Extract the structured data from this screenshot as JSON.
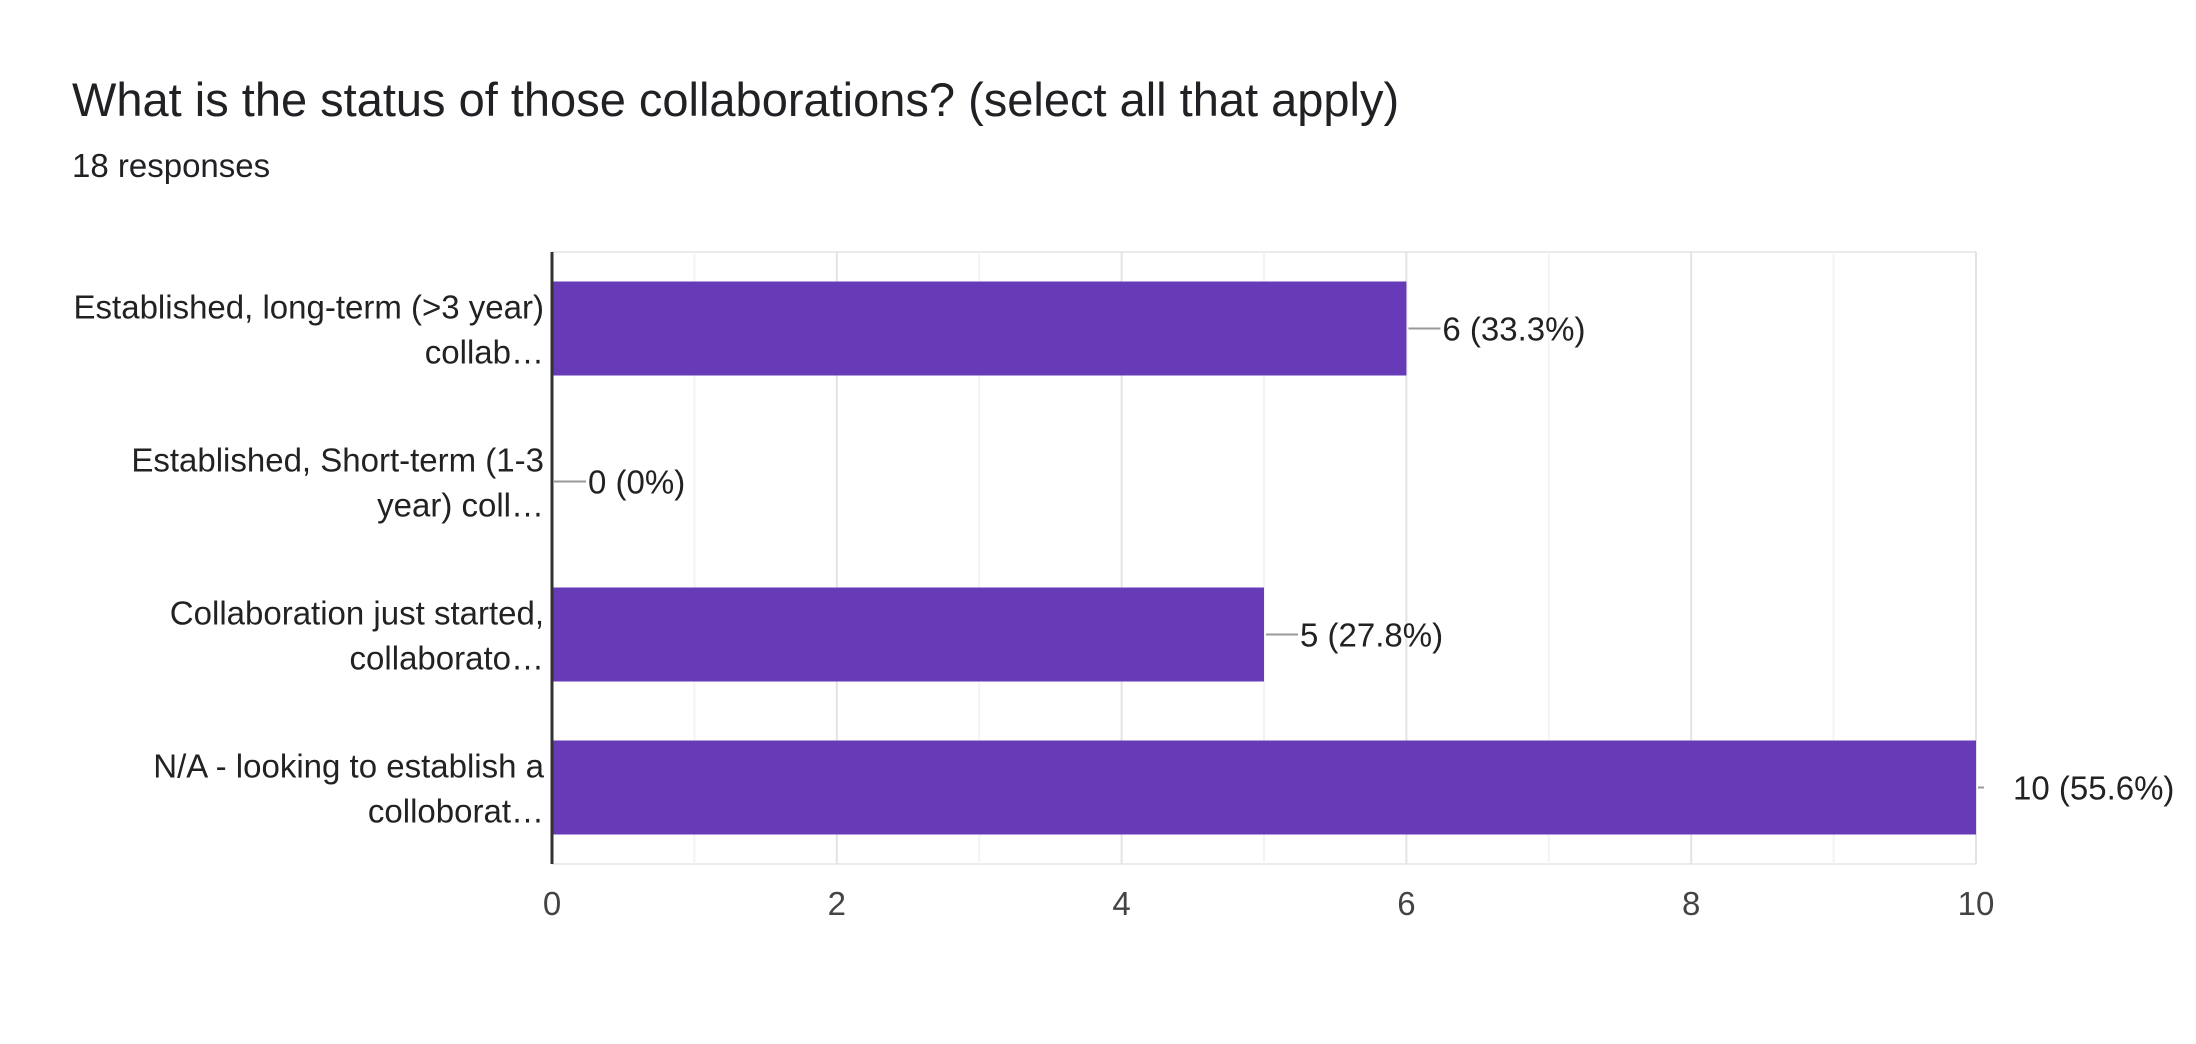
{
  "header": {
    "title": "What is the status of those collaborations? (select all that apply)",
    "responses": "18 responses"
  },
  "colors": {
    "bar": "#673ab7",
    "grid": "#ebebeb",
    "axis": "#333333",
    "leader": "#999999"
  },
  "chart_data": {
    "type": "bar",
    "orientation": "horizontal",
    "title": "What is the status of those collaborations? (select all that apply)",
    "subtitle": "18 responses",
    "categories": [
      [
        "Established, long-term (>3 year)",
        "collab…"
      ],
      [
        "Established, Short-term (1-3",
        "year) coll…"
      ],
      [
        "Collaboration just started,",
        "collaborato…"
      ],
      [
        "N/A - looking to establish a",
        "colloborat…"
      ]
    ],
    "values": [
      6,
      0,
      5,
      10
    ],
    "data_labels": [
      "6 (33.3%)",
      "0 (0%)",
      "5 (27.8%)",
      "10 (55.6%)"
    ],
    "xlim": [
      0,
      10
    ],
    "xticks": [
      0,
      2,
      4,
      6,
      8,
      10
    ],
    "grid": true,
    "legend": "none"
  }
}
